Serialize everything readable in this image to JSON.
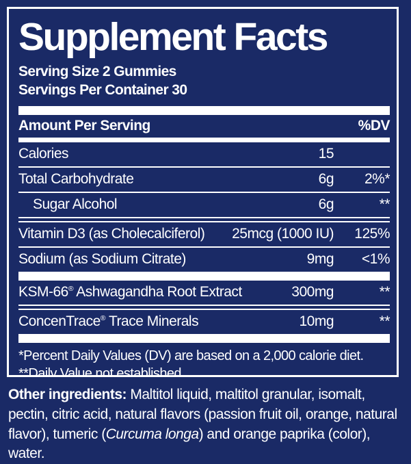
{
  "colors": {
    "background": "#1a2a66",
    "text": "#ffffff"
  },
  "title": "Supplement Facts",
  "serving": {
    "size": "Serving Size 2 Gummies",
    "per_container": "Servings Per Container 30"
  },
  "header": {
    "amount_per_serving": "Amount Per Serving",
    "dv": "%DV"
  },
  "rows": [
    {
      "name": "Calories",
      "amount": "15",
      "dv": "",
      "indent": false,
      "sep_after": "thin"
    },
    {
      "name": "Total Carbohydrate",
      "amount": "6g",
      "dv": "2%*",
      "indent": false,
      "sep_after": "thin"
    },
    {
      "name": "Sugar Alcohol",
      "amount": "6g",
      "dv": "**",
      "indent": true,
      "sep_after": "double"
    },
    {
      "name": "Vitamin D3 (as Cholecalciferol)",
      "amount": "25mcg (1000 IU)",
      "dv": "125%",
      "indent": false,
      "sep_after": "thin"
    },
    {
      "name": "Sodium (as Sodium Citrate)",
      "amount": "9mg",
      "dv": "<1%",
      "indent": false,
      "sep_after": "thick"
    },
    {
      "name": "KSM-66® Ashwagandha Root Extract",
      "amount": "300mg",
      "dv": "**",
      "indent": false,
      "sep_after": "double"
    },
    {
      "name": "ConcenTrace® Trace Minerals",
      "amount": "10mg",
      "dv": "**",
      "indent": false,
      "sep_after": "thick"
    }
  ],
  "footnotes": [
    "*Percent Daily Values (DV) are based on a 2,000 calorie diet.",
    "**Daily Value not established."
  ],
  "other_ingredients": {
    "label": "Other ingredients:",
    "before_italic": " Maltitol liquid, maltitol granular, isomalt, pectin, citric acid, natural flavors (passion fruit oil, orange, natural flavor), tumeric (",
    "italic": "Curcuma longa",
    "after_italic": ") and orange paprika (color), water."
  }
}
